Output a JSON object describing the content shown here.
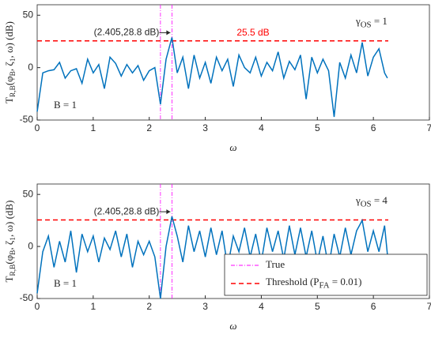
{
  "chart_data": [
    {
      "type": "line",
      "xlabel": "ω",
      "ylabel": [
        "T",
        "R,B",
        "(φ",
        "B",
        ", ζ",
        "1",
        ", ω) (dB)"
      ],
      "xlim": [
        0,
        7
      ],
      "xticks": [
        0,
        1,
        2,
        3,
        4,
        5,
        6,
        7
      ],
      "ylim": [
        -50,
        60
      ],
      "yticks": [
        -50,
        0,
        50
      ],
      "color": "#0072bd",
      "x": [
        0,
        0.1,
        0.2,
        0.3,
        0.4,
        0.5,
        0.6,
        0.7,
        0.8,
        0.9,
        1.0,
        1.1,
        1.2,
        1.3,
        1.4,
        1.5,
        1.6,
        1.7,
        1.8,
        1.9,
        2.0,
        2.1,
        2.2,
        2.3,
        2.405,
        2.5,
        2.6,
        2.7,
        2.8,
        2.9,
        3.0,
        3.1,
        3.2,
        3.3,
        3.4,
        3.5,
        3.6,
        3.7,
        3.8,
        3.9,
        4.0,
        4.1,
        4.2,
        4.3,
        4.4,
        4.5,
        4.6,
        4.7,
        4.8,
        4.9,
        5.0,
        5.1,
        5.2,
        5.3,
        5.4,
        5.5,
        5.6,
        5.7,
        5.8,
        5.9,
        6.0,
        6.1,
        6.2,
        6.25
      ],
      "values": [
        -42,
        -5,
        -3,
        -2,
        5,
        -10,
        -3,
        -1,
        -15,
        8,
        -5,
        3,
        -20,
        10,
        4,
        -8,
        3,
        -5,
        2,
        -12,
        -3,
        0,
        -35,
        8,
        28.8,
        -5,
        10,
        -20,
        12,
        -10,
        5,
        -15,
        10,
        -3,
        8,
        -18,
        12,
        0,
        -5,
        10,
        -8,
        5,
        -3,
        15,
        -10,
        6,
        -2,
        12,
        -30,
        10,
        -5,
        8,
        -3,
        -47,
        5,
        -10,
        12,
        -5,
        24,
        -8,
        10,
        18,
        -5,
        -10
      ],
      "vlines": {
        "color": "#ff00ff",
        "values": [
          2.2,
          2.405
        ]
      },
      "threshold": {
        "color": "#ff0000",
        "value": 25.5,
        "label": "25.5 dB"
      },
      "annotation": "(2.405,28.8 dB)",
      "gamma_label": [
        "γ",
        "OS",
        " = 1"
      ],
      "b_label": "B = 1"
    },
    {
      "type": "line",
      "xlabel": "ω",
      "ylabel": [
        "T",
        "R,B",
        "(φ",
        "B",
        ", ζ",
        "1",
        ", ω) (dB)"
      ],
      "xlim": [
        0,
        7
      ],
      "xticks": [
        0,
        1,
        2,
        3,
        4,
        5,
        6,
        7
      ],
      "ylim": [
        -50,
        60
      ],
      "yticks": [
        -50,
        0,
        50
      ],
      "color": "#0072bd",
      "x": [
        0,
        0.1,
        0.2,
        0.3,
        0.4,
        0.5,
        0.6,
        0.7,
        0.8,
        0.9,
        1.0,
        1.1,
        1.2,
        1.3,
        1.4,
        1.5,
        1.6,
        1.7,
        1.8,
        1.9,
        2.0,
        2.1,
        2.2,
        2.3,
        2.405,
        2.5,
        2.6,
        2.7,
        2.8,
        2.9,
        3.0,
        3.1,
        3.2,
        3.3,
        3.4,
        3.5,
        3.6,
        3.7,
        3.8,
        3.9,
        4.0,
        4.1,
        4.2,
        4.3,
        4.4,
        4.5,
        4.6,
        4.7,
        4.8,
        4.9,
        5.0,
        5.1,
        5.2,
        5.3,
        5.4,
        5.5,
        5.6,
        5.7,
        5.8,
        5.9,
        6.0,
        6.1,
        6.2,
        6.25
      ],
      "values": [
        -45,
        -5,
        10,
        -20,
        5,
        -15,
        15,
        -25,
        12,
        -5,
        10,
        -15,
        8,
        -3,
        15,
        -10,
        12,
        -20,
        5,
        -8,
        5,
        -10,
        -50,
        0,
        28.8,
        10,
        -15,
        20,
        -5,
        15,
        -10,
        18,
        -8,
        15,
        -20,
        10,
        -5,
        18,
        -10,
        12,
        -15,
        18,
        -5,
        15,
        -12,
        20,
        -8,
        18,
        -10,
        15,
        -15,
        10,
        -20,
        12,
        -10,
        18,
        -8,
        15,
        25,
        -5,
        15,
        -5,
        20,
        -8
      ],
      "vlines": {
        "name": "True",
        "color": "#ff00ff",
        "values": [
          2.2,
          2.405
        ]
      },
      "threshold": {
        "name": [
          "Threshold (P",
          "FA",
          " = 0.01)"
        ],
        "color": "#ff0000",
        "value": 25.5
      },
      "annotation": "(2.405,28.8 dB)",
      "gamma_label": [
        "γ",
        "OS",
        " = 4"
      ],
      "b_label": "B = 1",
      "legend": "lower right"
    }
  ]
}
